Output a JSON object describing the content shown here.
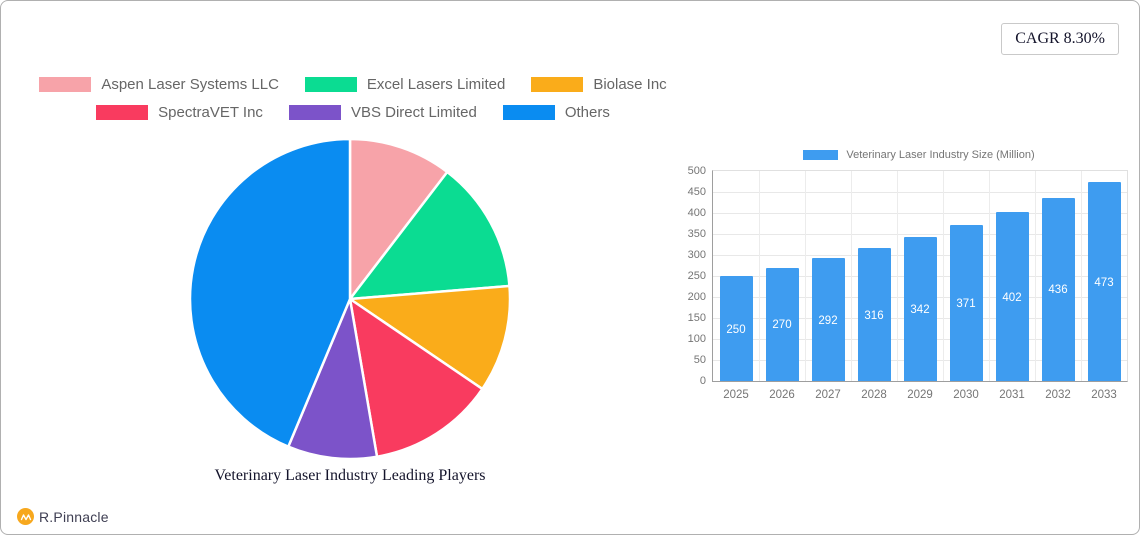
{
  "cagr": {
    "label": "CAGR 8.30%"
  },
  "footer": {
    "brand": "R.Pinnacle"
  },
  "colors": {
    "frame_border": "#b0b0b0",
    "legend_text": "#666666",
    "axis_text": "#757575",
    "gridline": "#e8e8e8",
    "title_text": "#14142b",
    "logo_circle": "#f7a81e"
  },
  "chart_data": [
    {
      "type": "pie",
      "title": "Veterinary Laser Industry Leading Players",
      "labels": [
        "Aspen Laser Systems LLC",
        "Excel Lasers Limited",
        "Biolase Inc",
        "SpectraVET Inc",
        "VBS Direct Limited",
        "Others"
      ],
      "values_percent": [
        10.4,
        13.3,
        10.8,
        12.8,
        9.0,
        43.7
      ],
      "colors": [
        "#F7A3A9",
        "#0BDC92",
        "#FAAC1A",
        "#F93B5F",
        "#7C53C9",
        "#0A8CF1"
      ],
      "start_angle_deg": 0,
      "direction": "clockwise",
      "legend_position": "top",
      "legend_rows": [
        3,
        3
      ]
    },
    {
      "type": "bar",
      "legend": "Veterinary Laser Industry Size (Million)",
      "categories": [
        "2025",
        "2026",
        "2027",
        "2028",
        "2029",
        "2030",
        "2031",
        "2032",
        "2033"
      ],
      "values": [
        250,
        270,
        292,
        316,
        342,
        371,
        402,
        436,
        473
      ],
      "bar_color": "#3E9CF0",
      "value_label_color": "#ffffff",
      "ylim": [
        0,
        500
      ],
      "yticks": [
        0,
        50,
        100,
        150,
        200,
        250,
        300,
        350,
        400,
        450,
        500
      ],
      "grid": true,
      "legend_position": "top"
    }
  ]
}
